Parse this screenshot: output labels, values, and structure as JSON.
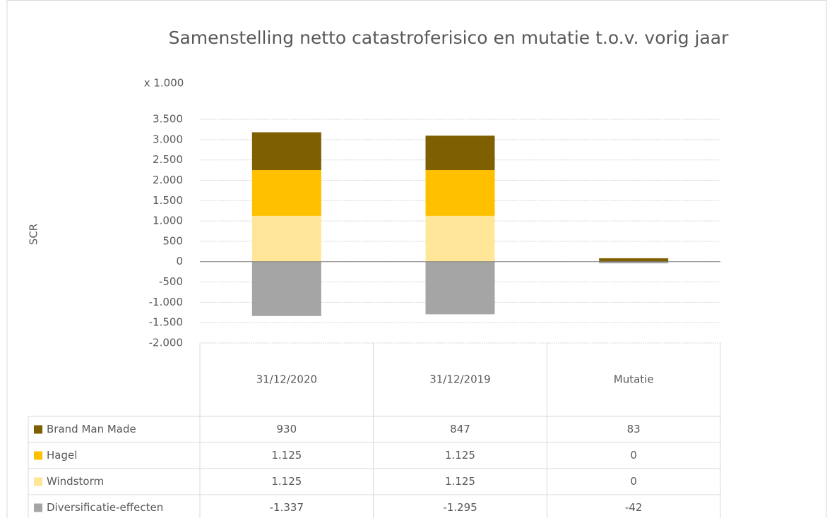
{
  "chart_data": {
    "type": "bar",
    "stacked": true,
    "title": "Samenstelling netto catastroferisico en mutatie t.o.v. vorig jaar",
    "unit_label": "x 1.000",
    "y_label": "SCR",
    "categories": [
      "31/12/2020",
      "31/12/2019",
      "Mutatie"
    ],
    "series": [
      {
        "name": "Brand Man Made",
        "color": "#7f6000",
        "values": [
          930,
          847,
          83
        ],
        "value_labels": [
          "930",
          "847",
          "83"
        ]
      },
      {
        "name": "Hagel",
        "color": "#ffc000",
        "values": [
          1125,
          1125,
          0
        ],
        "value_labels": [
          "1.125",
          "1.125",
          "0"
        ]
      },
      {
        "name": "Windstorm",
        "color": "#ffe699",
        "values": [
          1125,
          1125,
          0
        ],
        "value_labels": [
          "1.125",
          "1.125",
          "0"
        ]
      },
      {
        "name": "Diversificatie-effecten",
        "color": "#a5a5a5",
        "values": [
          -1337,
          -1295,
          -42
        ],
        "value_labels": [
          "-1.337",
          "-1.295",
          "-42"
        ]
      }
    ],
    "ylim": [
      -2000,
      3500
    ],
    "yticks": [
      {
        "value": -2000,
        "label": "-2.000"
      },
      {
        "value": -1500,
        "label": "-1.500"
      },
      {
        "value": -1000,
        "label": "-1.000"
      },
      -500,
      0,
      500,
      {
        "value": 1000,
        "label": "1.000"
      },
      {
        "value": 1500,
        "label": "1.500"
      },
      {
        "value": 2000,
        "label": "2.000"
      },
      {
        "value": 2500,
        "label": "2.500"
      },
      {
        "value": 3000,
        "label": "3.000"
      },
      {
        "value": 3500,
        "label": "3.500"
      }
    ],
    "grid": true,
    "data_table": true
  }
}
